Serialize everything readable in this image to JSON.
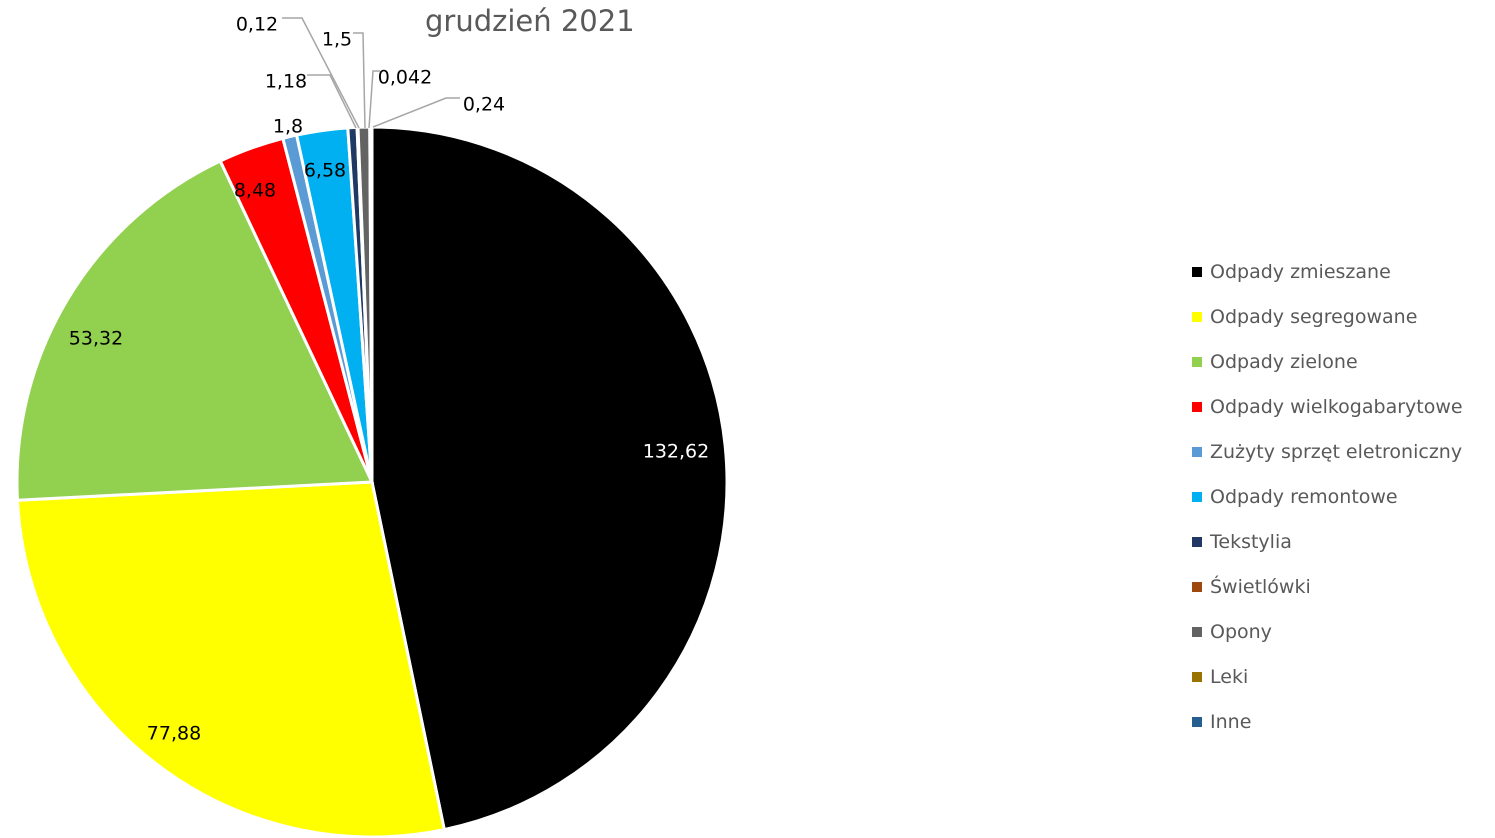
{
  "chart_data": {
    "type": "pie",
    "title": "grudzień 2021",
    "legend_position": "right",
    "series": [
      {
        "name": "Odpady zmieszane",
        "value": 132.62,
        "label": "132,62",
        "color": "#000000"
      },
      {
        "name": "Odpady segregowane",
        "value": 77.88,
        "label": "77,88",
        "color": "#ffff00"
      },
      {
        "name": "Odpady zielone",
        "value": 53.32,
        "label": "53,32",
        "color": "#92d050"
      },
      {
        "name": "Odpady wielkogabarytowe",
        "value": 8.48,
        "label": "8,48",
        "color": "#ff0000"
      },
      {
        "name": "Zużyty sprzęt eletroniczny",
        "value": 1.8,
        "label": "1,8",
        "color": "#5b9bd5"
      },
      {
        "name": "Odpady remontowe",
        "value": 6.58,
        "label": "6,58",
        "color": "#00b0f0"
      },
      {
        "name": "Tekstylia",
        "value": 1.18,
        "label": "1,18",
        "color": "#203864"
      },
      {
        "name": "Świetlówki",
        "value": 0.12,
        "label": "0,12",
        "color": "#9e480e"
      },
      {
        "name": "Opony",
        "value": 1.5,
        "label": "1,5",
        "color": "#636363"
      },
      {
        "name": "Leki",
        "value": 0.042,
        "label": "0,042",
        "color": "#997300"
      },
      {
        "name": "Inne",
        "value": 0.24,
        "label": "0,24",
        "color": "#255e91"
      }
    ]
  }
}
